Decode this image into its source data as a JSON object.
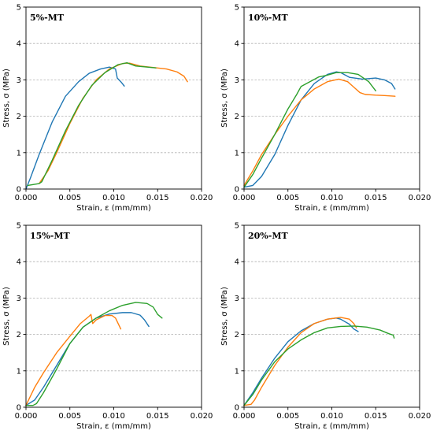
{
  "figure": {
    "colors": [
      "#1f77b4",
      "#ff7f0e",
      "#2ca02c"
    ]
  },
  "chart_data": [
    {
      "type": "line",
      "title": "5%-MT",
      "xlabel": "Strain, ε (mm/mm)",
      "ylabel": "Stress, σ (MPa)",
      "xlim": [
        0,
        0.02
      ],
      "ylim": [
        0,
        5
      ],
      "xticks": [
        "0.000",
        "0.005",
        "0.010",
        "0.015",
        "0.020"
      ],
      "yticks": [
        "0",
        "1",
        "2",
        "3",
        "4",
        "5"
      ],
      "grid": "y-dashed",
      "series": [
        {
          "color": "#1f77b4",
          "x": [
            0.0,
            0.0005,
            0.0015,
            0.003,
            0.0045,
            0.006,
            0.0072,
            0.0085,
            0.0095,
            0.0102,
            0.0104,
            0.0108,
            0.0112
          ],
          "y": [
            0.0,
            0.3,
            0.95,
            1.85,
            2.55,
            2.95,
            3.18,
            3.3,
            3.35,
            3.3,
            3.05,
            2.95,
            2.83
          ]
        },
        {
          "color": "#ff7f0e",
          "x": [
            0.0015,
            0.0025,
            0.0035,
            0.005,
            0.0065,
            0.008,
            0.0095,
            0.011,
            0.0118,
            0.013,
            0.0145,
            0.016,
            0.0172,
            0.018,
            0.0184
          ],
          "y": [
            0.15,
            0.5,
            1.0,
            1.8,
            2.5,
            3.0,
            3.3,
            3.45,
            3.46,
            3.38,
            3.34,
            3.3,
            3.22,
            3.1,
            2.95
          ]
        },
        {
          "color": "#2ca02c",
          "x": [
            0.0002,
            0.0015,
            0.0018,
            0.003,
            0.0045,
            0.006,
            0.0075,
            0.009,
            0.0105,
            0.0115,
            0.0125,
            0.0148
          ],
          "y": [
            0.1,
            0.15,
            0.2,
            0.8,
            1.6,
            2.3,
            2.85,
            3.2,
            3.42,
            3.47,
            3.38,
            3.33
          ]
        }
      ]
    },
    {
      "type": "line",
      "title": "10%-MT",
      "xlabel": "Strain, ε (mm/mm)",
      "ylabel": "Stress, σ (MPa)",
      "xlim": [
        0,
        0.02
      ],
      "ylim": [
        0,
        5
      ],
      "xticks": [
        "0.000",
        "0.005",
        "0.010",
        "0.015",
        "0.020"
      ],
      "yticks": [
        "0",
        "1",
        "2",
        "3",
        "4",
        "5"
      ],
      "grid": "y-dashed",
      "series": [
        {
          "color": "#1f77b4",
          "x": [
            0.0,
            0.001,
            0.002,
            0.0035,
            0.005,
            0.0065,
            0.008,
            0.0095,
            0.0105,
            0.011,
            0.012,
            0.0135,
            0.015,
            0.016,
            0.0168,
            0.0172
          ],
          "y": [
            0.05,
            0.1,
            0.35,
            0.95,
            1.75,
            2.45,
            2.9,
            3.15,
            3.22,
            3.2,
            3.07,
            3.02,
            3.05,
            3.0,
            2.9,
            2.75
          ]
        },
        {
          "color": "#ff7f0e",
          "x": [
            0.0,
            0.001,
            0.002,
            0.0035,
            0.005,
            0.0065,
            0.008,
            0.0095,
            0.0108,
            0.0118,
            0.0125,
            0.0132,
            0.0138,
            0.015,
            0.016,
            0.0172
          ],
          "y": [
            0.1,
            0.5,
            0.95,
            1.5,
            2.0,
            2.45,
            2.75,
            2.95,
            3.02,
            2.95,
            2.8,
            2.65,
            2.6,
            2.58,
            2.57,
            2.55
          ]
        },
        {
          "color": "#2ca02c",
          "x": [
            0.0,
            0.001,
            0.002,
            0.0035,
            0.005,
            0.006,
            0.0065,
            0.0075,
            0.0085,
            0.0095,
            0.0105,
            0.0118,
            0.013,
            0.0142,
            0.015
          ],
          "y": [
            0.05,
            0.4,
            0.85,
            1.5,
            2.2,
            2.6,
            2.82,
            2.95,
            3.08,
            3.13,
            3.2,
            3.2,
            3.15,
            2.95,
            2.7
          ]
        }
      ]
    },
    {
      "type": "line",
      "title": "15%-MT",
      "xlabel": "Strain, ε (mm/mm)",
      "ylabel": "Stress, σ (MPa)",
      "xlim": [
        0,
        0.02
      ],
      "ylim": [
        0,
        5
      ],
      "xticks": [
        "0.000",
        "0.005",
        "0.010",
        "0.015",
        "0.020"
      ],
      "yticks": [
        "0",
        "1",
        "2",
        "3",
        "4",
        "5"
      ],
      "grid": "y-dashed",
      "series": [
        {
          "color": "#1f77b4",
          "x": [
            0.0,
            0.001,
            0.002,
            0.0035,
            0.005,
            0.0065,
            0.008,
            0.0095,
            0.011,
            0.012,
            0.013,
            0.0135,
            0.014
          ],
          "y": [
            0.05,
            0.2,
            0.55,
            1.15,
            1.75,
            2.2,
            2.45,
            2.56,
            2.6,
            2.6,
            2.53,
            2.4,
            2.22
          ]
        },
        {
          "color": "#ff7f0e",
          "x": [
            0.0,
            0.001,
            0.002,
            0.0035,
            0.005,
            0.0062,
            0.0072,
            0.0074,
            0.0076,
            0.008,
            0.009,
            0.0098,
            0.0102,
            0.0108
          ],
          "y": [
            0.05,
            0.55,
            0.95,
            1.5,
            1.95,
            2.3,
            2.5,
            2.55,
            2.3,
            2.4,
            2.52,
            2.52,
            2.45,
            2.15
          ]
        },
        {
          "color": "#2ca02c",
          "x": [
            0.0,
            0.0008,
            0.0012,
            0.002,
            0.0035,
            0.005,
            0.0065,
            0.008,
            0.0095,
            0.011,
            0.0125,
            0.0138,
            0.0145,
            0.015,
            0.0155
          ],
          "y": [
            0.05,
            0.05,
            0.1,
            0.4,
            1.05,
            1.75,
            2.2,
            2.45,
            2.65,
            2.8,
            2.88,
            2.85,
            2.75,
            2.55,
            2.45
          ]
        }
      ]
    },
    {
      "type": "line",
      "title": "20%-MT",
      "xlabel": "Strain, ε (mm/mm)",
      "ylabel": "Stress, σ (MPa)",
      "xlim": [
        0,
        0.02
      ],
      "ylim": [
        0,
        5
      ],
      "xticks": [
        "0.000",
        "0.005",
        "0.010",
        "0.015",
        "0.020"
      ],
      "yticks": [
        "0",
        "1",
        "2",
        "3",
        "4",
        "5"
      ],
      "grid": "y-dashed",
      "series": [
        {
          "color": "#1f77b4",
          "x": [
            0.0,
            0.001,
            0.002,
            0.0035,
            0.005,
            0.0065,
            0.008,
            0.0095,
            0.0105,
            0.011,
            0.012,
            0.0125,
            0.013
          ],
          "y": [
            0.05,
            0.4,
            0.8,
            1.35,
            1.8,
            2.1,
            2.3,
            2.42,
            2.45,
            2.42,
            2.28,
            2.15,
            2.08
          ]
        },
        {
          "color": "#ff7f0e",
          "x": [
            0.0,
            0.0008,
            0.0012,
            0.002,
            0.0035,
            0.005,
            0.0065,
            0.008,
            0.0095,
            0.011,
            0.012,
            0.0125,
            0.0128
          ],
          "y": [
            0.05,
            0.08,
            0.2,
            0.55,
            1.15,
            1.65,
            2.05,
            2.3,
            2.42,
            2.47,
            2.42,
            2.3,
            2.18
          ]
        },
        {
          "color": "#2ca02c",
          "x": [
            0.0,
            0.001,
            0.002,
            0.0035,
            0.005,
            0.0065,
            0.008,
            0.0095,
            0.011,
            0.0125,
            0.014,
            0.0155,
            0.0165,
            0.017,
            0.0171
          ],
          "y": [
            0.05,
            0.35,
            0.75,
            1.25,
            1.6,
            1.85,
            2.05,
            2.18,
            2.22,
            2.23,
            2.2,
            2.12,
            2.02,
            1.98,
            1.9
          ]
        }
      ]
    }
  ]
}
